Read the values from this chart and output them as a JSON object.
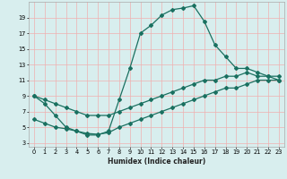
{
  "xlabel": "Humidex (Indice chaleur)",
  "bg_color": "#d8eeee",
  "grid_color": "#f0b0b0",
  "line_color": "#1a7060",
  "curve_x": [
    0,
    1,
    2,
    3,
    4,
    5,
    6,
    7,
    8,
    9,
    10,
    11,
    12,
    13,
    14,
    15,
    16,
    17,
    18,
    19,
    20,
    21,
    22,
    23
  ],
  "curve_y": [
    9,
    8,
    6.5,
    5,
    4.5,
    4,
    4,
    4.5,
    8.5,
    12.5,
    17,
    18,
    19.3,
    20,
    20.2,
    20.5,
    18.5,
    15.5,
    14,
    12.5,
    12.5,
    12,
    11.5,
    11
  ],
  "upper_line_x": [
    0,
    1,
    2,
    3,
    4,
    5,
    6,
    7,
    8,
    9,
    10,
    11,
    12,
    13,
    14,
    15,
    16,
    17,
    18,
    19,
    20,
    21,
    22,
    23
  ],
  "upper_line_y": [
    9,
    8.5,
    8,
    7.5,
    7,
    6.5,
    6.5,
    6.5,
    7,
    7.5,
    8,
    8.5,
    9,
    9.5,
    10,
    10.5,
    11,
    11,
    11.5,
    11.5,
    12,
    11.5,
    11.5,
    11.5
  ],
  "lower_line_x": [
    0,
    1,
    2,
    3,
    4,
    5,
    6,
    7,
    8,
    9,
    10,
    11,
    12,
    13,
    14,
    15,
    16,
    17,
    18,
    19,
    20,
    21,
    22,
    23
  ],
  "lower_line_y": [
    6,
    5.5,
    5,
    4.8,
    4.5,
    4.2,
    4.1,
    4.3,
    5,
    5.5,
    6,
    6.5,
    7,
    7.5,
    8,
    8.5,
    9,
    9.5,
    10,
    10,
    10.5,
    11,
    11,
    11
  ],
  "xlim": [
    -0.5,
    23.5
  ],
  "ylim": [
    2.5,
    21.0
  ],
  "xticks": [
    0,
    1,
    2,
    3,
    4,
    5,
    6,
    7,
    8,
    9,
    10,
    11,
    12,
    13,
    14,
    15,
    16,
    17,
    18,
    19,
    20,
    21,
    22,
    23
  ],
  "yticks": [
    3,
    5,
    7,
    9,
    11,
    13,
    15,
    17,
    19
  ]
}
